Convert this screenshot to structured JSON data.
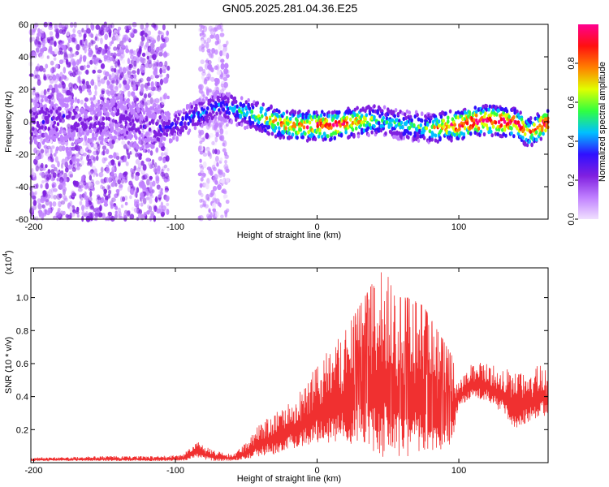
{
  "title": "GN05.2025.281.04.36.E25",
  "colors": {
    "snr_line": "#f03030",
    "axis": "#000000",
    "colormap": [
      "#f0e0ff",
      "#c080ff",
      "#8020e0",
      "#3010ff",
      "#00c0ff",
      "#30ff40",
      "#e0ff00",
      "#ff8000",
      "#ff1010",
      "#ff0090"
    ]
  },
  "chart_data": [
    {
      "type": "heatmap",
      "name": "spectrogram",
      "xlabel": "Height of straight line (km)",
      "ylabel": "Frequency (Hz)",
      "xlim": [
        -202,
        163
      ],
      "ylim": [
        -60,
        60
      ],
      "x_ticks": [
        -200,
        -100,
        0,
        100
      ],
      "y_ticks": [
        60,
        40,
        20,
        0,
        -20,
        -40,
        -60
      ],
      "y_tick_labels": [
        "60",
        "40",
        "20",
        "0",
        "-20",
        "-40",
        "-60"
      ],
      "colorbar": {
        "label": "Normalized spectral amplitude",
        "range": [
          0,
          1
        ],
        "ticks": [
          0.0,
          0.2,
          0.4,
          0.6,
          0.8
        ],
        "tick_labels": [
          "0.0",
          "0.2",
          "0.4",
          "0.6",
          "0.8"
        ]
      },
      "ridge": {
        "x": [
          -200,
          -180,
          -160,
          -140,
          -120,
          -100,
          -90,
          -80,
          -70,
          -60,
          -50,
          -40,
          -30,
          -20,
          -10,
          0,
          10,
          20,
          30,
          40,
          50,
          60,
          70,
          80,
          90,
          100,
          110,
          120,
          130,
          140,
          150,
          160
        ],
        "freq": [
          0,
          3,
          -2,
          2,
          -5,
          -3,
          2,
          6,
          10,
          8,
          5,
          3,
          0,
          -2,
          -3,
          -2,
          -3,
          -1,
          0,
          1,
          0,
          -2,
          -3,
          -4,
          -3,
          -2,
          0,
          1,
          0,
          -1,
          -7,
          -1
        ],
        "amplitude": [
          0.25,
          0.25,
          0.2,
          0.2,
          0.25,
          0.3,
          0.35,
          0.4,
          0.35,
          0.4,
          0.5,
          0.6,
          0.7,
          0.75,
          0.8,
          0.85,
          0.9,
          0.85,
          0.7,
          0.55,
          0.45,
          0.45,
          0.5,
          0.6,
          0.8,
          0.9,
          0.95,
          0.95,
          0.95,
          0.9,
          0.75,
          0.9
        ]
      },
      "noise_regions": [
        {
          "x_range": [
            -202,
            -105
          ],
          "freq_range": [
            -60,
            60
          ],
          "amplitude": 0.15
        },
        {
          "x_range": [
            -83,
            -63
          ],
          "freq_range": [
            -60,
            60
          ],
          "amplitude": 0.1
        }
      ]
    },
    {
      "type": "line",
      "name": "snr",
      "xlabel": "Height of straight line (km)",
      "ylabel": "SNR (10 * v/v)",
      "yscale_label": "(x10",
      "yscale_exponent": "4",
      "yscale_close": ")",
      "xlim": [
        -202,
        163
      ],
      "ylim": [
        0,
        1.18
      ],
      "x_ticks": [
        -200,
        -100,
        0,
        100
      ],
      "y_ticks": [
        0.2,
        0.4,
        0.6,
        0.8,
        1.0
      ],
      "y_tick_labels": [
        "0.2",
        "0.4",
        "0.6",
        "0.8",
        "1.0"
      ],
      "envelope": {
        "x": [
          -202,
          -150,
          -110,
          -95,
          -85,
          -75,
          -60,
          -50,
          -40,
          -30,
          -20,
          -10,
          0,
          10,
          20,
          30,
          40,
          48,
          55,
          65,
          75,
          85,
          95,
          100,
          110,
          120,
          130,
          140,
          150,
          160,
          163
        ],
        "low": [
          0.01,
          0.01,
          0.01,
          0.01,
          0.03,
          0.01,
          0.01,
          0.02,
          0.04,
          0.05,
          0.08,
          0.1,
          0.12,
          0.12,
          0.12,
          0.1,
          0.05,
          0.02,
          0.02,
          0.02,
          0.03,
          0.05,
          0.1,
          0.35,
          0.38,
          0.38,
          0.3,
          0.2,
          0.25,
          0.28,
          0.3
        ],
        "high": [
          0.03,
          0.04,
          0.04,
          0.05,
          0.13,
          0.08,
          0.05,
          0.12,
          0.25,
          0.3,
          0.38,
          0.45,
          0.6,
          0.7,
          0.8,
          0.95,
          1.1,
          1.18,
          1.0,
          1.0,
          0.95,
          0.8,
          0.65,
          0.48,
          0.62,
          0.6,
          0.58,
          0.55,
          0.55,
          0.62,
          0.5
        ]
      }
    }
  ]
}
